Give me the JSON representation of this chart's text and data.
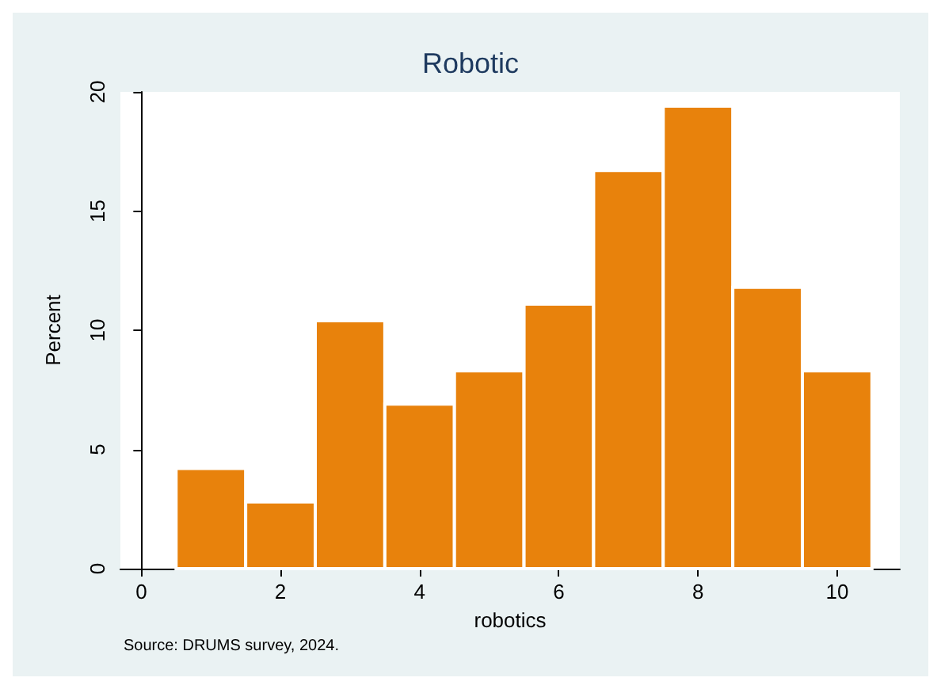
{
  "chart_data": {
    "type": "histogram",
    "title": "Robotic",
    "xlabel": "robotics",
    "ylabel": "Percent",
    "annotations": [
      "Source: DRUMS survey, 2024."
    ],
    "bins": [
      0.5,
      1.5,
      2.5,
      3.5,
      4.5,
      5.5,
      6.5,
      7.5,
      8.5,
      9.5,
      10.5
    ],
    "values": [
      4.2,
      2.8,
      10.4,
      6.9,
      8.3,
      11.1,
      16.7,
      19.4,
      11.8,
      8.3
    ],
    "color": "#e8820c",
    "xlim": [
      -0.3,
      10.9
    ],
    "xticks": [
      0,
      2,
      4,
      6,
      8,
      10
    ],
    "ylim": [
      0,
      20
    ],
    "yticks": [
      0,
      5,
      10,
      15,
      20
    ]
  }
}
